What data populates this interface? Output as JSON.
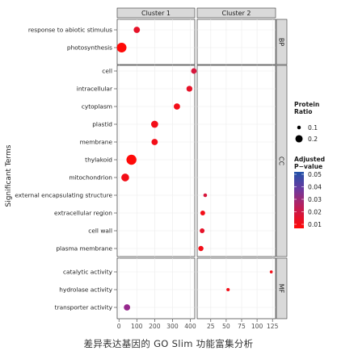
{
  "chart_data": {
    "type": "scatter",
    "caption": "差异表达基因的 GO Slim 功能富集分析",
    "ylabel": "Significant Terms",
    "facet_columns": [
      "Cluster 1",
      "Cluster 2"
    ],
    "facet_rows": [
      "BP",
      "CC",
      "MF"
    ],
    "x_axis": {
      "Cluster 1": {
        "ticks": [
          0,
          100,
          200,
          300,
          400
        ],
        "xlim": [
          -10,
          425
        ]
      },
      "Cluster 2": {
        "ticks": [
          25,
          50,
          75,
          100,
          125
        ],
        "xlim": [
          3,
          130
        ]
      }
    },
    "terms": {
      "BP": [
        "response to abiotic stimulus",
        "photosynthesis"
      ],
      "CC": [
        "cell",
        "intracellular",
        "cytoplasm",
        "plastid",
        "membrane",
        "thylakoid",
        "mitochondrion",
        "external encapsulating structure",
        "extracellular region",
        "cell wall",
        "plasma membrane"
      ],
      "MF": [
        "catalytic activity",
        "hydrolase activity",
        "transporter activity"
      ]
    },
    "points": [
      {
        "cluster": "Cluster 1",
        "category": "BP",
        "term": "response to abiotic stimulus",
        "x": 100,
        "ratio": 0.13,
        "padj": 0.01
      },
      {
        "cluster": "Cluster 1",
        "category": "BP",
        "term": "photosynthesis",
        "x": 15,
        "ratio": 0.22,
        "padj": 0.0
      },
      {
        "cluster": "Cluster 1",
        "category": "CC",
        "term": "cell",
        "x": 420,
        "ratio": 0.11,
        "padj": 0.015
      },
      {
        "cluster": "Cluster 1",
        "category": "CC",
        "term": "intracellular",
        "x": 395,
        "ratio": 0.12,
        "padj": 0.01
      },
      {
        "cluster": "Cluster 1",
        "category": "CC",
        "term": "cytoplasm",
        "x": 325,
        "ratio": 0.13,
        "padj": 0.005
      },
      {
        "cluster": "Cluster 1",
        "category": "CC",
        "term": "plastid",
        "x": 200,
        "ratio": 0.15,
        "padj": 0.005
      },
      {
        "cluster": "Cluster 1",
        "category": "CC",
        "term": "membrane",
        "x": 200,
        "ratio": 0.13,
        "padj": 0.005
      },
      {
        "cluster": "Cluster 1",
        "category": "CC",
        "term": "thylakoid",
        "x": 70,
        "ratio": 0.23,
        "padj": 0.0
      },
      {
        "cluster": "Cluster 1",
        "category": "CC",
        "term": "mitochondrion",
        "x": 35,
        "ratio": 0.17,
        "padj": 0.005
      },
      {
        "cluster": "Cluster 2",
        "category": "CC",
        "term": "external encapsulating structure",
        "x": 16,
        "ratio": 0.06,
        "padj": 0.015
      },
      {
        "cluster": "Cluster 2",
        "category": "CC",
        "term": "extracellular region",
        "x": 12,
        "ratio": 0.09,
        "padj": 0.005
      },
      {
        "cluster": "Cluster 2",
        "category": "CC",
        "term": "cell wall",
        "x": 11,
        "ratio": 0.09,
        "padj": 0.01
      },
      {
        "cluster": "Cluster 2",
        "category": "CC",
        "term": "plasma membrane",
        "x": 9,
        "ratio": 0.1,
        "padj": 0.005
      },
      {
        "cluster": "Cluster 2",
        "category": "MF",
        "term": "catalytic activity",
        "x": 123,
        "ratio": 0.04,
        "padj": 0.005
      },
      {
        "cluster": "Cluster 2",
        "category": "MF",
        "term": "hydrolase activity",
        "x": 53,
        "ratio": 0.05,
        "padj": 0.005
      },
      {
        "cluster": "Cluster 1",
        "category": "MF",
        "term": "transporter activity",
        "x": 45,
        "ratio": 0.13,
        "padj": 0.03
      }
    ],
    "legend_size": {
      "title": "Protein\nRatio",
      "values": [
        0.1,
        0.2
      ]
    },
    "legend_color": {
      "title": "Adjusted\nP−value",
      "ticks": [
        0.05,
        0.04,
        0.03,
        0.02,
        0.01
      ],
      "colors": [
        "#2052a8",
        "#6a3aa0",
        "#a8226e",
        "#d8143a",
        "#f00a0e"
      ]
    },
    "grid": true
  }
}
